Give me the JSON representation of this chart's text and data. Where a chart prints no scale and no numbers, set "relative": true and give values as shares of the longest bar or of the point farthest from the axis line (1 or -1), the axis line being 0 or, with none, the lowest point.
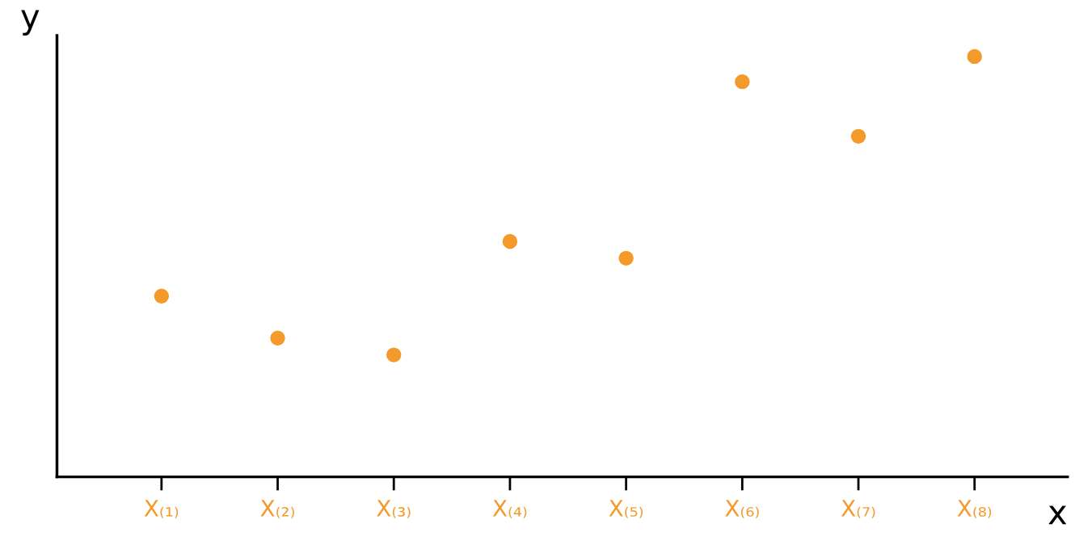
{
  "chart_data": {
    "type": "scatter",
    "xlabel": "x",
    "ylabel": "y",
    "relative": true,
    "grid": false,
    "legend": false,
    "marker": "circle",
    "categories": [
      "X₍₁₎",
      "X₍₂₎",
      "X₍₃₎",
      "X₍₄₎",
      "X₍₅₎",
      "X₍₆₎",
      "X₍₇₎",
      "X₍₈₎"
    ],
    "series": [
      {
        "color": "#f39a2b",
        "values": [
          0.43,
          0.33,
          0.29,
          0.56,
          0.52,
          0.94,
          0.81,
          1.0
        ]
      }
    ]
  }
}
